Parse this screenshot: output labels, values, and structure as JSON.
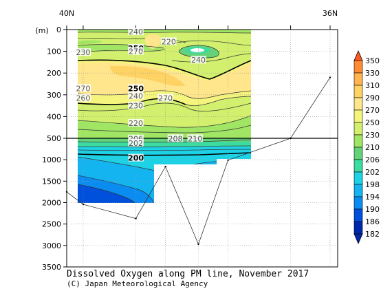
{
  "chart_data": {
    "type": "heatmap",
    "title": "Dissolved Oxygen along PM line, November 2017",
    "credit": "(C) Japan Meteorological Agency",
    "top_labels": [
      "40N",
      "36N"
    ],
    "y_unit": "(m)",
    "y_ticks": [
      0,
      100,
      200,
      300,
      400,
      500,
      1000,
      1500,
      2000,
      2500,
      3000,
      3500
    ],
    "y_axis_note": "depth axis stretched 0-500 m, compressed 500-3500 m",
    "colorbar": {
      "levels": [
        350,
        330,
        310,
        290,
        270,
        250,
        230,
        210,
        206,
        202,
        198,
        194,
        190,
        186,
        182
      ],
      "colors": [
        "#ff5a1e",
        "#ff8c32",
        "#ffb450",
        "#ffd264",
        "#ffe68c",
        "#f5f57d",
        "#d2f06e",
        "#a0e664",
        "#64d278",
        "#3cdca0",
        "#1ed2e6",
        "#14b4f0",
        "#0a8cf0",
        "#0050dc",
        "#0028aa"
      ]
    },
    "contour_labels": [
      {
        "text": "240",
        "bold": false,
        "lat": 38.95,
        "depth": 10
      },
      {
        "text": "220",
        "bold": false,
        "lat": 38.45,
        "depth": 55
      },
      {
        "text": "250",
        "bold": true,
        "lat": 38.95,
        "depth": 85
      },
      {
        "text": "270",
        "bold": false,
        "lat": 38.95,
        "depth": 100
      },
      {
        "text": "230",
        "bold": false,
        "lat": 39.75,
        "depth": 105
      },
      {
        "text": "240",
        "bold": false,
        "lat": 38.0,
        "depth": 140
      },
      {
        "text": "270",
        "bold": false,
        "lat": 39.75,
        "depth": 270
      },
      {
        "text": "260",
        "bold": false,
        "lat": 39.75,
        "depth": 315
      },
      {
        "text": "250",
        "bold": true,
        "lat": 38.95,
        "depth": 270
      },
      {
        "text": "240",
        "bold": false,
        "lat": 38.95,
        "depth": 305
      },
      {
        "text": "270",
        "bold": false,
        "lat": 38.5,
        "depth": 315
      },
      {
        "text": "230",
        "bold": false,
        "lat": 38.95,
        "depth": 350
      },
      {
        "text": "220",
        "bold": false,
        "lat": 38.95,
        "depth": 430
      },
      {
        "text": "206",
        "bold": false,
        "lat": 38.95,
        "depth": 510
      },
      {
        "text": "208",
        "bold": false,
        "lat": 38.35,
        "depth": 505
      },
      {
        "text": "210",
        "bold": false,
        "lat": 38.05,
        "depth": 505
      },
      {
        "text": "202",
        "bold": false,
        "lat": 38.95,
        "depth": 610
      },
      {
        "text": "200",
        "bold": true,
        "lat": 38.95,
        "depth": 960
      }
    ],
    "bottom_topography": [
      {
        "lat": 40.0,
        "depth": 1750
      },
      {
        "lat": 39.75,
        "depth": 2040
      },
      {
        "lat": 38.95,
        "depth": 2370
      },
      {
        "lat": 38.5,
        "depth": 1160
      },
      {
        "lat": 38.0,
        "depth": 2970
      },
      {
        "lat": 37.55,
        "depth": 1010
      },
      {
        "lat": 36.6,
        "depth": 500
      },
      {
        "lat": 36.0,
        "depth": 220
      }
    ],
    "stations_lat": [
      40.0,
      39.75,
      38.95,
      38.5,
      38.0,
      37.55,
      36.6,
      36.0
    ],
    "lat_range": [
      40.0,
      36.0
    ],
    "depth_range": [
      0,
      3500
    ]
  }
}
